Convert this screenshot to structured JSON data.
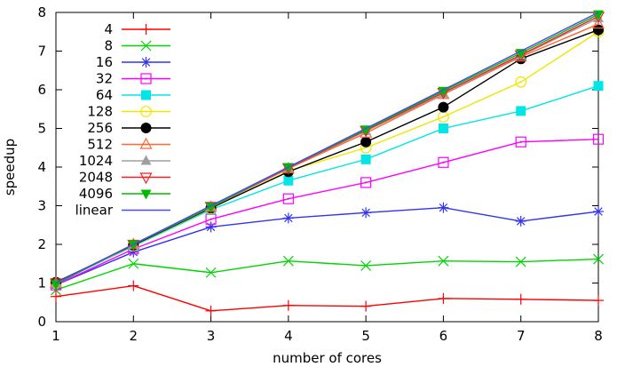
{
  "chart_data": {
    "type": "line",
    "title": "",
    "xlabel": "number of cores",
    "ylabel": "speedup",
    "xlim": [
      1,
      8
    ],
    "ylim": [
      0,
      8
    ],
    "xticks": [
      1,
      2,
      3,
      4,
      5,
      6,
      7,
      8
    ],
    "yticks": [
      0,
      1,
      2,
      3,
      4,
      5,
      6,
      7,
      8
    ],
    "grid": false,
    "legend_position": "top-left-inside",
    "legend_border": false,
    "axis_color": "#000000",
    "background_color": "#ffffff",
    "x": [
      1,
      2,
      3,
      4,
      5,
      6,
      7,
      8
    ],
    "series": [
      {
        "name": "4",
        "color": "#ff0000",
        "marker": "plus",
        "values": [
          0.65,
          0.93,
          0.28,
          0.42,
          0.4,
          0.6,
          0.58,
          0.55
        ]
      },
      {
        "name": "8",
        "color": "#00d500",
        "marker": "cross",
        "values": [
          0.82,
          1.5,
          1.27,
          1.57,
          1.45,
          1.57,
          1.55,
          1.62
        ]
      },
      {
        "name": "16",
        "color": "#3333f0",
        "marker": "asterisk",
        "values": [
          0.95,
          1.8,
          2.45,
          2.68,
          2.82,
          2.95,
          2.6,
          2.85
        ]
      },
      {
        "name": "32",
        "color": "#ff00ff",
        "marker": "square-open",
        "values": [
          0.95,
          1.88,
          2.65,
          3.18,
          3.6,
          4.12,
          4.65,
          4.72
        ]
      },
      {
        "name": "64",
        "color": "#00e5e5",
        "marker": "square-filled",
        "values": [
          1.0,
          1.95,
          2.9,
          3.65,
          4.2,
          5.0,
          5.45,
          6.1
        ]
      },
      {
        "name": "128",
        "color": "#f2e500",
        "marker": "circle-open",
        "values": [
          1.0,
          1.97,
          2.93,
          3.9,
          4.5,
          5.3,
          6.2,
          7.5
        ]
      },
      {
        "name": "256",
        "color": "#000000",
        "marker": "circle-filled",
        "values": [
          1.02,
          1.98,
          2.94,
          3.88,
          4.65,
          5.55,
          6.8,
          7.55
        ]
      },
      {
        "name": "512",
        "color": "#ff6633",
        "marker": "triangle-up-open",
        "values": [
          1.0,
          2.0,
          2.96,
          3.96,
          4.88,
          5.88,
          6.85,
          7.7
        ]
      },
      {
        "name": "1024",
        "color": "#9f9f9f",
        "marker": "triangle-up-filled",
        "values": [
          1.0,
          2.0,
          2.97,
          3.97,
          4.93,
          5.9,
          6.88,
          7.85
        ]
      },
      {
        "name": "2048",
        "color": "#ee2222",
        "marker": "triangle-down-open",
        "values": [
          1.0,
          2.0,
          2.98,
          3.98,
          4.95,
          5.93,
          6.9,
          7.9
        ]
      },
      {
        "name": "4096",
        "color": "#00bb00",
        "marker": "triangle-down-filled",
        "values": [
          0.97,
          2.0,
          2.97,
          4.0,
          4.97,
          5.97,
          6.95,
          7.95
        ]
      },
      {
        "name": "linear",
        "color": "#4848ff",
        "marker": "none",
        "values": [
          1,
          2,
          3,
          4,
          5,
          6,
          7,
          8
        ]
      }
    ]
  }
}
